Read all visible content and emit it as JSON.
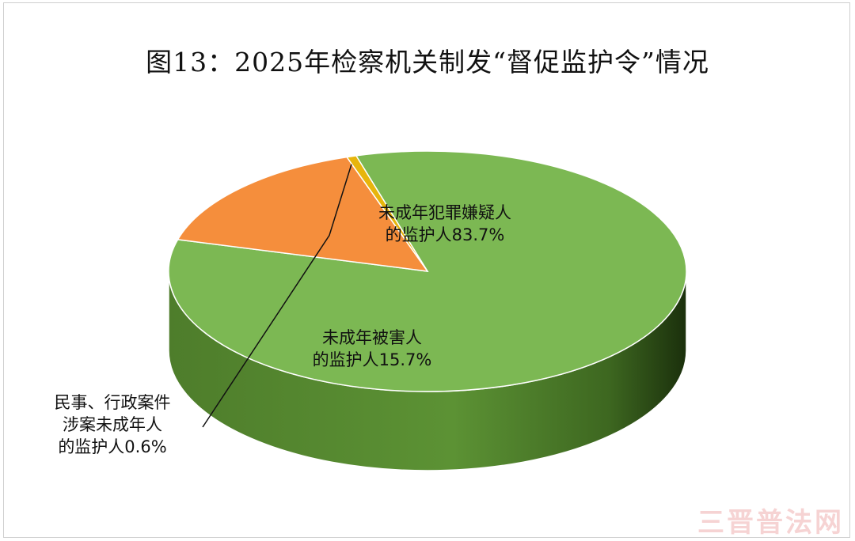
{
  "chart_data": {
    "type": "pie",
    "title": "图13：2025年检察机关制发“督促监护令”情况",
    "slices": [
      {
        "label_lines": [
          "未成年犯罪嫌疑人",
          "的监护人83.7%"
        ],
        "value": 83.7,
        "color": "#7cb853"
      },
      {
        "label_lines": [
          "未成年被害人",
          "的监护人15.7%"
        ],
        "value": 15.7,
        "color": "#f58e3c"
      },
      {
        "label_lines": [
          "民事、行政案件",
          "涉案未成年人",
          "的监护人0.6%"
        ],
        "value": 0.6,
        "color": "#e7b50c"
      }
    ]
  },
  "watermark": "三晋普法网"
}
